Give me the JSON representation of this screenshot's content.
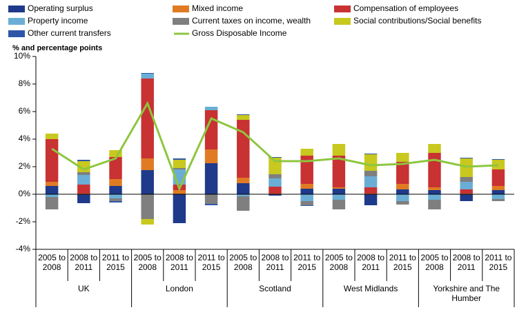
{
  "chart_data": {
    "type": "stacked-bar-line",
    "y_label": "% and percentage points",
    "categories": [
      "2005 to 2008",
      "2008 to 2011",
      "2011 to 2015",
      "2005 to 2008",
      "2008 to 2011",
      "2011 to 2015",
      "2005 to 2008",
      "2008 to 2011",
      "2011 to 2015",
      "2005 to 2008",
      "2008 to 2011",
      "2011 to 2015",
      "2005 to 2008",
      "2008 to 2011",
      "2011 to 2015"
    ],
    "groups": [
      "UK",
      "London",
      "Scotland",
      "West Midlands",
      "Yorkshire and The Humber"
    ],
    "ylim": [
      -4,
      10
    ],
    "yticks": [
      {
        "value": -4,
        "label": "-4%"
      },
      {
        "value": -2,
        "label": "-2%"
      },
      {
        "value": 0,
        "label": "0%"
      },
      {
        "value": 2,
        "label": "2%"
      },
      {
        "value": 4,
        "label": "4%"
      },
      {
        "value": 6,
        "label": "6%"
      },
      {
        "value": 8,
        "label": "8%"
      },
      {
        "value": 10,
        "label": "10%"
      }
    ],
    "series": [
      {
        "name": "Operating surplus",
        "color": "#1f3a8a",
        "values": [
          0.6,
          -0.65,
          0.6,
          1.75,
          -2.1,
          2.25,
          0.8,
          -0.1,
          0.4,
          0.4,
          -0.8,
          0.35,
          0.3,
          -0.5,
          0.3
        ]
      },
      {
        "name": "Mixed income",
        "color": "#e07b24",
        "values": [
          0.3,
          0.05,
          0.5,
          0.85,
          0.3,
          1.0,
          0.4,
          0.05,
          0.35,
          0.1,
          0.05,
          0.4,
          0.2,
          0.05,
          0.3
        ]
      },
      {
        "name": "Compensation of employees",
        "color": "#c83232",
        "values": [
          3.1,
          0.65,
          1.6,
          5.8,
          0.4,
          2.85,
          4.2,
          0.5,
          2.05,
          2.3,
          0.45,
          1.6,
          2.5,
          0.3,
          1.2
        ]
      },
      {
        "name": "Property income",
        "color": "#6aaed6",
        "values": [
          -0.2,
          0.7,
          -0.3,
          0.35,
          1.1,
          0.25,
          -0.15,
          0.6,
          -0.5,
          -0.4,
          0.8,
          -0.5,
          -0.4,
          0.55,
          -0.35
        ]
      },
      {
        "name": "Current taxes on income, wealth",
        "color": "#7f7f7f",
        "values": [
          -0.9,
          0.2,
          -0.2,
          -1.8,
          0.1,
          -0.7,
          -1.05,
          0.3,
          -0.3,
          -0.7,
          0.4,
          -0.25,
          -0.7,
          0.35,
          -0.15
        ]
      },
      {
        "name": "Social contributions/Social benefits",
        "color": "#c8c81e",
        "values": [
          0.4,
          0.8,
          0.5,
          -0.4,
          0.6,
          0,
          0.35,
          1.2,
          0.5,
          0.85,
          1.2,
          0.65,
          0.65,
          1.35,
          0.7
        ]
      },
      {
        "name": "Other current transfers",
        "color": "#2e56a8",
        "values": [
          0,
          0.1,
          -0.1,
          0.05,
          0.1,
          -0.1,
          0.05,
          0.05,
          -0.05,
          0,
          0.05,
          0,
          0,
          0.05,
          0.05
        ]
      },
      {
        "name": "Gross Disposable Income",
        "color": "#8dc63f",
        "type": "line",
        "values": [
          3.3,
          1.8,
          2.6,
          6.6,
          0.4,
          5.5,
          4.5,
          2.4,
          2.4,
          2.6,
          2.1,
          2.2,
          2.5,
          2.0,
          2.1
        ]
      }
    ]
  }
}
